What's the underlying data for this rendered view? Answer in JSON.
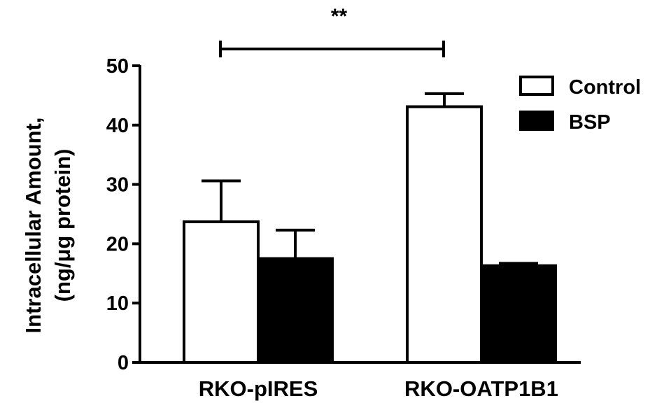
{
  "chart_data": {
    "type": "bar",
    "ylabel_line1": "Intracellular Amount,",
    "ylabel_line2": "(ng/μg protein)",
    "categories": [
      "RKO-pIRES",
      "RKO-OATP1B1"
    ],
    "ylim": [
      0,
      50
    ],
    "yticks": [
      0,
      10,
      20,
      30,
      40,
      50
    ],
    "series": [
      {
        "name": "Control",
        "values": [
          23.7,
          43.1
        ],
        "errors": [
          6.9,
          2.2
        ],
        "fill": "#ffffff"
      },
      {
        "name": "BSP",
        "values": [
          17.5,
          16.3
        ],
        "errors": [
          4.8,
          0.4
        ],
        "fill": "#000000"
      }
    ],
    "significance": {
      "label": "**",
      "from_category": 0,
      "to_category": 1
    },
    "legend_position": "top-right",
    "grid": false
  }
}
